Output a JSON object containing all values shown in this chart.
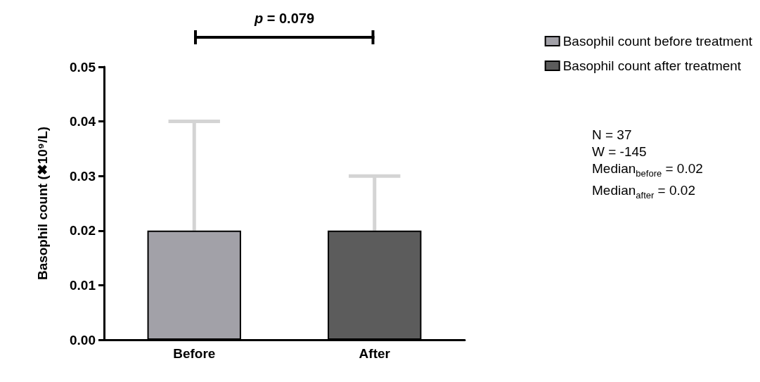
{
  "chart_data": {
    "type": "bar",
    "ylabel": "Basophil count (✖10⁹/L)",
    "categories": [
      "Before",
      "After"
    ],
    "series": [
      {
        "name": "Basophil count before treatment",
        "color": "#a2a1a8",
        "values": [
          0.02,
          null
        ],
        "errors": [
          [
            0.02,
            0.04
          ],
          null
        ]
      },
      {
        "name": "Basophil count after treatment",
        "color": "#5c5c5c",
        "values": [
          null,
          0.02
        ],
        "errors": [
          null,
          [
            0.02,
            0.03
          ]
        ]
      }
    ],
    "ylim": [
      0,
      0.05
    ],
    "yticks": [
      {
        "value": 0,
        "label": "0.00"
      },
      {
        "value": 0.01,
        "label": "0.01"
      },
      {
        "value": 0.02,
        "label": "0.02"
      },
      {
        "value": 0.03,
        "label": "0.03"
      },
      {
        "value": 0.04,
        "label": "0.04"
      },
      {
        "value": 0.05,
        "label": "0.05"
      }
    ],
    "annotations": [
      "p = 0.079",
      "N = 37",
      "W = -145",
      "Median$_{before}$ = 0.02",
      "Median$_{after}$ = 0.02"
    ],
    "legend": "top right",
    "grid": false
  }
}
